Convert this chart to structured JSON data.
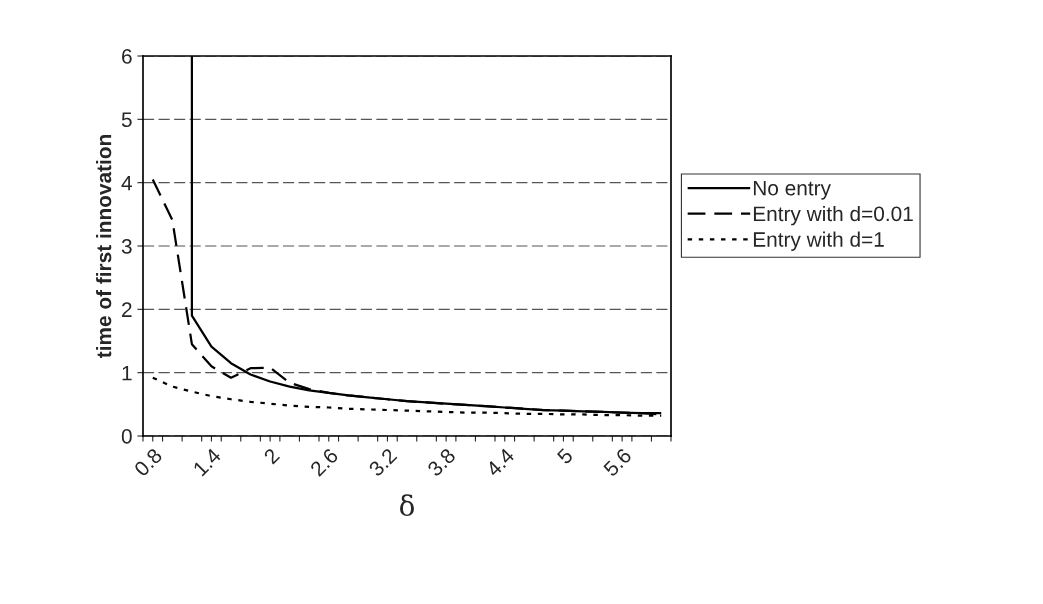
{
  "chart_data": {
    "type": "line",
    "xlabel": "δ",
    "ylabel": "time of first innovation",
    "xlim": [
      0.7,
      6.1
    ],
    "ylim": [
      0,
      6
    ],
    "yticks": [
      0,
      1,
      2,
      3,
      4,
      5,
      6
    ],
    "xticks": [
      {
        "value": 0.7,
        "label": null
      },
      0.8,
      {
        "value": 0.9,
        "label": null
      },
      {
        "value": 1.1,
        "label": null
      },
      {
        "value": 1.3,
        "label": null
      },
      1.4,
      {
        "value": 1.5,
        "label": null
      },
      {
        "value": 1.7,
        "label": null
      },
      {
        "value": 1.9,
        "label": null
      },
      2,
      {
        "value": 2.1,
        "label": null
      },
      {
        "value": 2.3,
        "label": null
      },
      {
        "value": 2.5,
        "label": null
      },
      2.6,
      {
        "value": 2.7,
        "label": null
      },
      {
        "value": 2.9,
        "label": null
      },
      {
        "value": 3.1,
        "label": null
      },
      3.2,
      {
        "value": 3.3,
        "label": null
      },
      {
        "value": 3.5,
        "label": null
      },
      {
        "value": 3.7,
        "label": null
      },
      3.8,
      {
        "value": 3.9,
        "label": null
      },
      {
        "value": 4.1,
        "label": null
      },
      {
        "value": 4.3,
        "label": null
      },
      4.4,
      {
        "value": 4.5,
        "label": null
      },
      {
        "value": 4.7,
        "label": null
      },
      {
        "value": 4.9,
        "label": null
      },
      5,
      {
        "value": 5.1,
        "label": null
      },
      {
        "value": 5.3,
        "label": null
      },
      {
        "value": 5.5,
        "label": null
      },
      5.6,
      {
        "value": 5.7,
        "label": null
      },
      {
        "value": 5.9,
        "label": null
      },
      {
        "value": 6.1,
        "label": null
      }
    ],
    "grid": "y",
    "legend": "right",
    "series": [
      {
        "name": "No entry",
        "color": "#000000",
        "line_style": "solid",
        "x": [
          1.2,
          1.2,
          1.4,
          1.6,
          1.8,
          2.0,
          2.2,
          2.4,
          2.6,
          2.8,
          3.0,
          3.2,
          3.4,
          3.6,
          3.8,
          4.0,
          4.2,
          4.4,
          4.6,
          4.8,
          5.0,
          5.2,
          5.4,
          5.6,
          5.8,
          6.0
        ],
        "values": [
          6,
          1.9,
          1.41,
          1.15,
          0.97,
          0.86,
          0.78,
          0.72,
          0.68,
          0.64,
          0.61,
          0.58,
          0.55,
          0.53,
          0.51,
          0.49,
          0.47,
          0.45,
          0.43,
          0.41,
          0.4,
          0.39,
          0.38,
          0.37,
          0.36,
          0.36
        ]
      },
      {
        "name": "Entry with d=0.01",
        "color": "#000000",
        "line_style": "dashed",
        "x": [
          0.8,
          1.0,
          1.2,
          1.4,
          1.6,
          1.8,
          2.0,
          2.2,
          2.4,
          2.6,
          2.8,
          3.0,
          3.2,
          3.4,
          3.6,
          3.8,
          4.0,
          4.2,
          4.4,
          4.6,
          4.8,
          5.0,
          5.2,
          5.4,
          5.6,
          5.8,
          6.0
        ],
        "values": [
          4.05,
          3.41,
          1.45,
          1.1,
          0.92,
          1.07,
          1.08,
          0.84,
          0.74,
          0.68,
          0.64,
          0.61,
          0.58,
          0.55,
          0.53,
          0.51,
          0.49,
          0.47,
          0.45,
          0.43,
          0.41,
          0.4,
          0.39,
          0.38,
          0.37,
          0.36,
          0.34
        ]
      },
      {
        "name": "Entry with d=1",
        "color": "#000000",
        "line_style": "dotted",
        "x": [
          0.8,
          1.0,
          1.2,
          1.4,
          1.6,
          1.8,
          2.0,
          2.2,
          2.4,
          2.6,
          2.8,
          3.0,
          3.2,
          3.4,
          3.6,
          3.8,
          4.0,
          4.2,
          4.4,
          4.6,
          4.8,
          5.0,
          5.2,
          5.4,
          5.6,
          5.8,
          6.0
        ],
        "values": [
          0.92,
          0.78,
          0.7,
          0.63,
          0.58,
          0.54,
          0.51,
          0.48,
          0.46,
          0.45,
          0.43,
          0.42,
          0.41,
          0.4,
          0.39,
          0.38,
          0.37,
          0.37,
          0.36,
          0.35,
          0.35,
          0.34,
          0.34,
          0.33,
          0.33,
          0.32,
          0.32
        ]
      }
    ]
  }
}
